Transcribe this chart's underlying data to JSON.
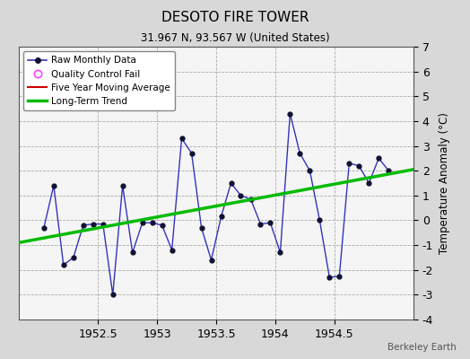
{
  "title": "DESOTO FIRE TOWER",
  "subtitle": "31.967 N, 93.567 W (United States)",
  "ylabel": "Temperature Anomaly (°C)",
  "credit": "Berkeley Earth",
  "background_color": "#d8d8d8",
  "plot_bg_color": "#f5f5f5",
  "ylim": [
    -4,
    7
  ],
  "xlim": [
    1951.83,
    1955.17
  ],
  "yticks": [
    -4,
    -3,
    -2,
    -1,
    0,
    1,
    2,
    3,
    4,
    5,
    6,
    7
  ],
  "xticks": [
    1952.5,
    1953.0,
    1953.5,
    1954.0,
    1954.5
  ],
  "xtick_labels": [
    "1952.5",
    "1953",
    "1953.5",
    "1954",
    "1954.5"
  ],
  "raw_x": [
    1952.042,
    1952.125,
    1952.208,
    1952.292,
    1952.375,
    1952.458,
    1952.542,
    1952.625,
    1952.708,
    1952.792,
    1952.875,
    1952.958,
    1953.042,
    1953.125,
    1953.208,
    1953.292,
    1953.375,
    1953.458,
    1953.542,
    1953.625,
    1953.708,
    1953.792,
    1953.875,
    1953.958,
    1954.042,
    1954.125,
    1954.208,
    1954.292,
    1954.375,
    1954.458,
    1954.542,
    1954.625,
    1954.708,
    1954.792,
    1954.875,
    1954.958
  ],
  "raw_y": [
    -0.3,
    1.4,
    -1.8,
    -1.5,
    -0.2,
    -0.15,
    -0.15,
    -3.0,
    1.4,
    -1.3,
    -0.1,
    -0.1,
    -0.2,
    -1.2,
    3.3,
    2.7,
    -0.3,
    -1.6,
    0.15,
    1.5,
    1.0,
    0.85,
    -0.15,
    -0.1,
    -1.3,
    4.3,
    2.7,
    2.0,
    0.0,
    -2.3,
    -2.25,
    2.3,
    2.2,
    1.5,
    2.5,
    2.0
  ],
  "trend_x": [
    1951.83,
    1955.17
  ],
  "trend_y": [
    -0.9,
    2.05
  ],
  "line_color": "#3333bb",
  "marker_color": "#111133",
  "trend_color": "#00bb00",
  "moving_avg_color": "#cc0000",
  "legend_loc": "upper left"
}
